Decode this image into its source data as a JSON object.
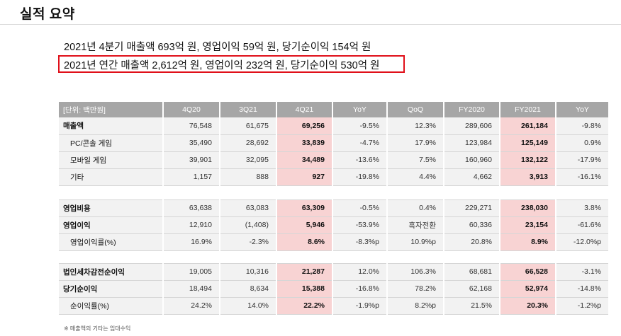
{
  "header": {
    "title": "실적 요약"
  },
  "summary": {
    "line1": "2021년 4분기 매출액 693억 원, 영업이익 59억 원, 당기순이익 154억 원",
    "line2": "2021년 연간 매출액 2,612억 원, 영업이익 232억 원, 당기순이익 530억 원",
    "highlight_color": "#e0101a"
  },
  "table": {
    "columns": [
      "[단위: 백만원]",
      "4Q20",
      "3Q21",
      "4Q21",
      "YoY",
      "QoQ",
      "FY2020",
      "FY2021",
      "YoY"
    ],
    "highlight_color": "#f8d3d3",
    "header_color": "#a6a6a6",
    "rows": [
      {
        "label": "매출액",
        "values": [
          "76,548",
          "61,675",
          "69,256",
          "-9.5%",
          "12.3%",
          "289,606",
          "261,184",
          "-9.8%"
        ]
      },
      {
        "label": "PC/콘솔 게임",
        "values": [
          "35,490",
          "28,692",
          "33,839",
          "-4.7%",
          "17.9%",
          "123,984",
          "125,149",
          "0.9%"
        ]
      },
      {
        "label": "모바일 게임",
        "values": [
          "39,901",
          "32,095",
          "34,489",
          "-13.6%",
          "7.5%",
          "160,960",
          "132,122",
          "-17.9%"
        ]
      },
      {
        "label": "기타",
        "values": [
          "1,157",
          "888",
          "927",
          "-19.8%",
          "4.4%",
          "4,662",
          "3,913",
          "-16.1%"
        ]
      },
      {
        "label": "영업비용",
        "values": [
          "63,638",
          "63,083",
          "63,309",
          "-0.5%",
          "0.4%",
          "229,271",
          "238,030",
          "3.8%"
        ]
      },
      {
        "label": "영업이익",
        "values": [
          "12,910",
          "(1,408)",
          "5,946",
          "-53.9%",
          "흑자전환",
          "60,336",
          "23,154",
          "-61.6%"
        ]
      },
      {
        "label": "영업이익률(%)",
        "values": [
          "16.9%",
          "-2.3%",
          "8.6%",
          "-8.3%p",
          "10.9%p",
          "20.8%",
          "8.9%",
          "-12.0%p"
        ]
      },
      {
        "label": "법인세차감전순이익",
        "values": [
          "19,005",
          "10,316",
          "21,287",
          "12.0%",
          "106.3%",
          "68,681",
          "66,528",
          "-3.1%"
        ]
      },
      {
        "label": "당기순이익",
        "values": [
          "18,494",
          "8,634",
          "15,388",
          "-16.8%",
          "78.2%",
          "62,168",
          "52,974",
          "-14.8%"
        ]
      },
      {
        "label": "순이익률(%)",
        "values": [
          "24.2%",
          "14.0%",
          "22.2%",
          "-1.9%p",
          "8.2%p",
          "21.5%",
          "20.3%",
          "-1.2%p"
        ]
      }
    ]
  },
  "footnote": "※ 매출액의 기타는 임대수익"
}
